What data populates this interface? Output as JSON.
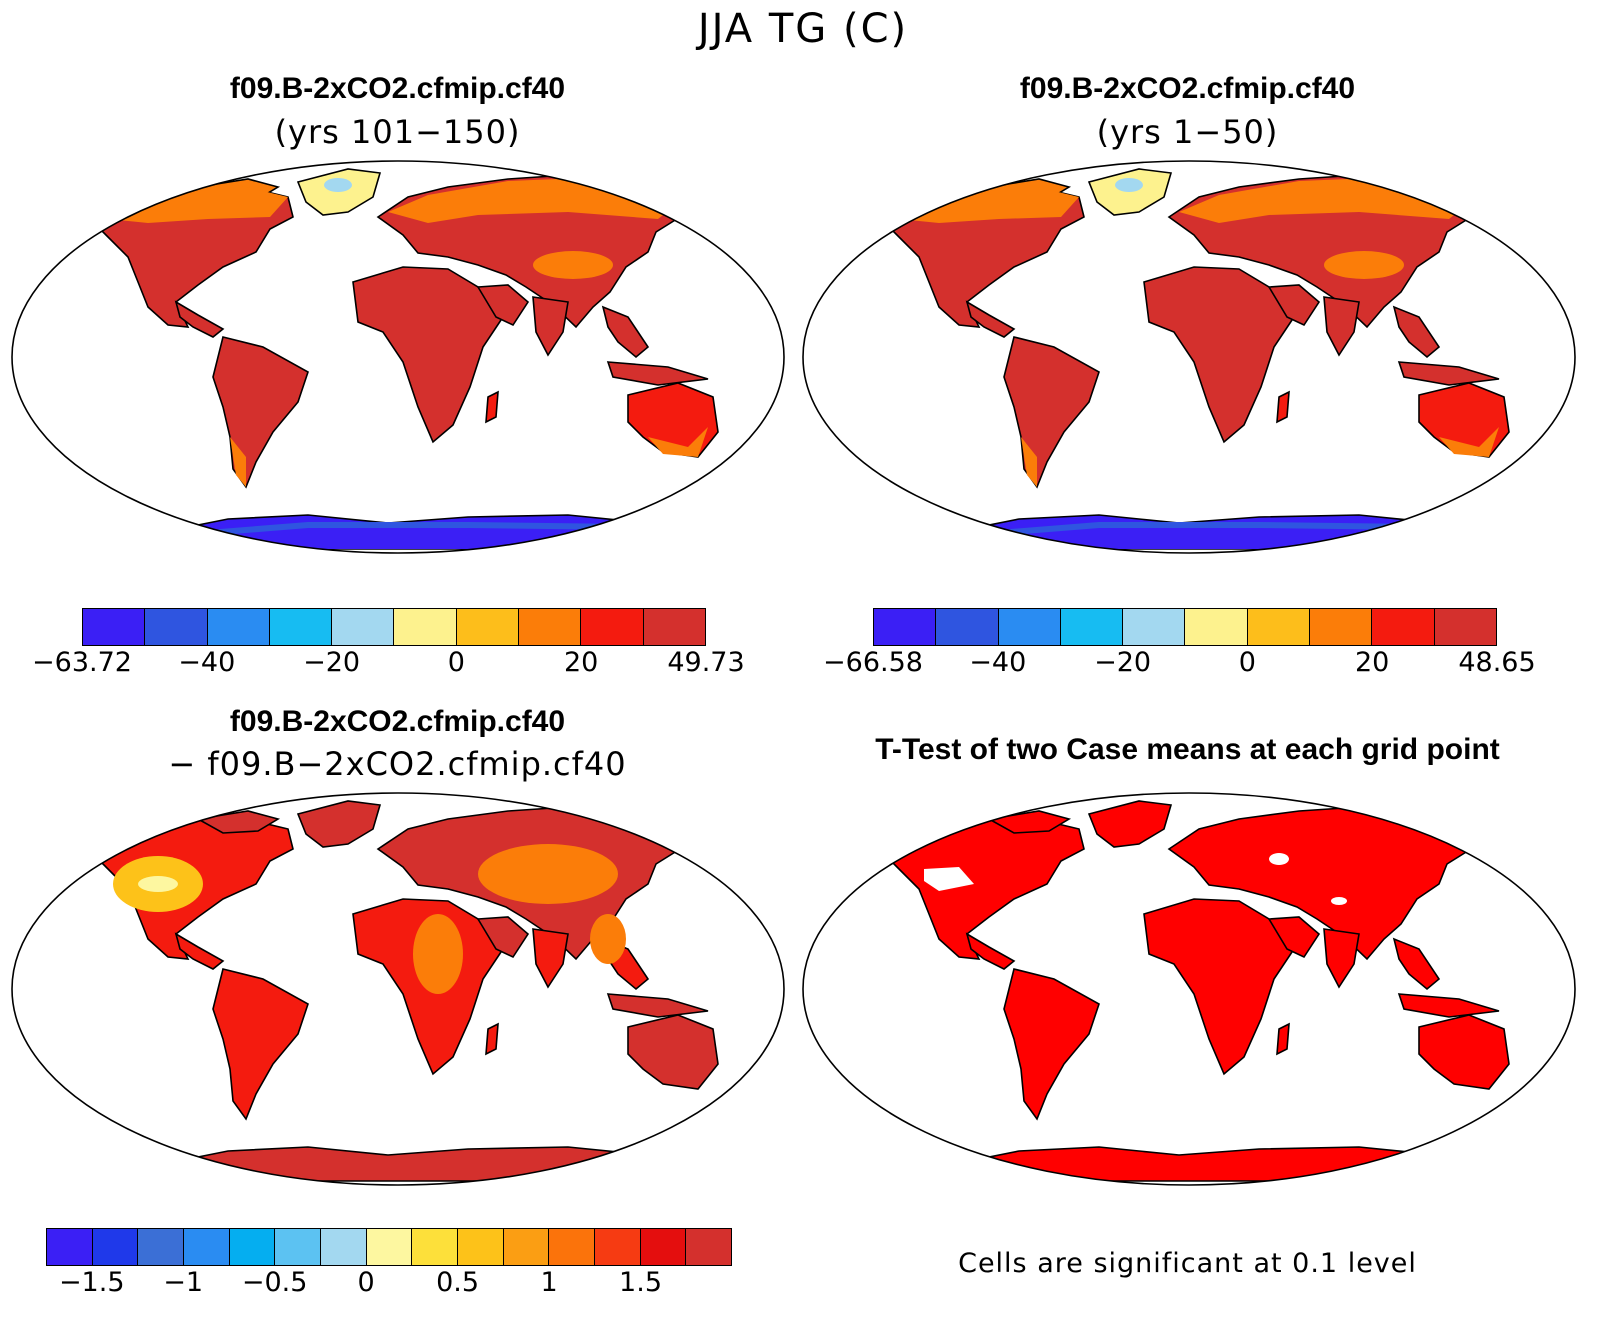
{
  "title": "JJA TG (C)",
  "panels": [
    {
      "id": "p1",
      "title": "f09.B-2xCO2.cfmip.cf40",
      "subtitle": "(yrs 101−150)",
      "colorbar": {
        "colors": [
          "#3b1ff5",
          "#2f55e0",
          "#2a8cf2",
          "#17bcf2",
          "#a3d8f0",
          "#fdf28e",
          "#fdbe1b",
          "#fb7d09",
          "#f41b0f",
          "#d4302d"
        ],
        "tick_labels": [
          "−63.72",
          "−40",
          "−20",
          "0",
          "20",
          "49.73"
        ]
      }
    },
    {
      "id": "p2",
      "title": "f09.B-2xCO2.cfmip.cf40",
      "subtitle": "(yrs 1−50)",
      "colorbar": {
        "colors": [
          "#3b1ff5",
          "#2f55e0",
          "#2a8cf2",
          "#17bcf2",
          "#a3d8f0",
          "#fdf28e",
          "#fdbe1b",
          "#fb7d09",
          "#f41b0f",
          "#d4302d"
        ],
        "tick_labels": [
          "−66.58",
          "−40",
          "−20",
          "0",
          "20",
          "48.65"
        ]
      }
    },
    {
      "id": "p3",
      "title": "f09.B-2xCO2.cfmip.cf40",
      "subtitle": "− f09.B−2xCO2.cfmip.cf40",
      "colorbar": {
        "colors": [
          "#3b1ff5",
          "#1f39ea",
          "#3b6fd6",
          "#2a8cf2",
          "#05aef0",
          "#5cc2f2",
          "#a3d8f0",
          "#fdf7a0",
          "#fde03a",
          "#fdc219",
          "#fb9e13",
          "#fb730b",
          "#f63b12",
          "#e40e0e",
          "#d4302d"
        ],
        "tick_labels": [
          "−1.5",
          "−1",
          "−0.5",
          "0",
          "0.5",
          "1",
          "1.5"
        ]
      }
    },
    {
      "id": "p4",
      "title": "T-Test of two Case means at each grid point",
      "note": "Cells are significant at 0.1 level"
    }
  ],
  "colors": {
    "land_warm": "#d4302d",
    "land_red": "#f41b0f",
    "land_orange": "#fb7d09",
    "land_yellow": "#fdf28e",
    "ice_blue": "#2f55e0",
    "ice_deep": "#3b1ff5",
    "sig_red": "#ff0000"
  }
}
